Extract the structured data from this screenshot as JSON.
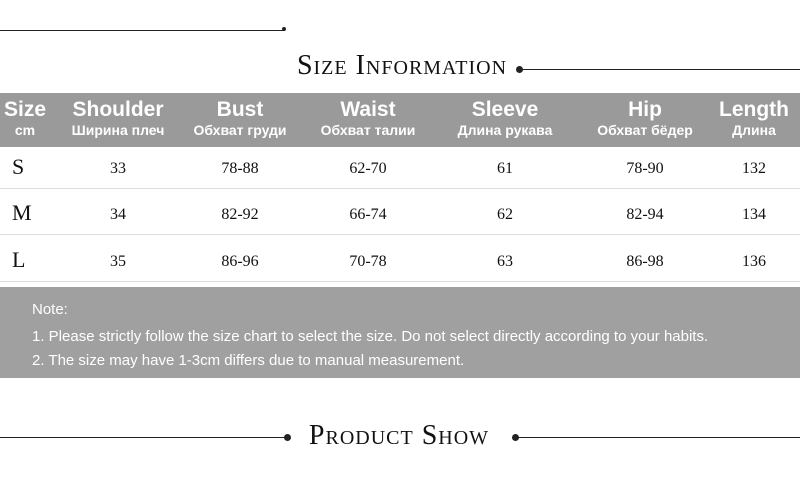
{
  "header": {
    "title": "Size Information"
  },
  "table": {
    "columns": [
      {
        "name": "Size",
        "sub": "cm"
      },
      {
        "name": "Shoulder",
        "sub": "Ширина плеч"
      },
      {
        "name": "Bust",
        "sub": "Обхват груди"
      },
      {
        "name": "Waist",
        "sub": "Обхват талии"
      },
      {
        "name": "Sleeve",
        "sub": "Длина рукава"
      },
      {
        "name": "Hip",
        "sub": "Обхват бёдер"
      },
      {
        "name": "Length",
        "sub": "Длина"
      }
    ],
    "rows": [
      [
        "S",
        "33",
        "78-88",
        "62-70",
        "61",
        "78-90",
        "132"
      ],
      [
        "M",
        "34",
        "82-92",
        "66-74",
        "62",
        "82-94",
        "134"
      ],
      [
        "L",
        "35",
        "86-96",
        "70-78",
        "63",
        "86-98",
        "136"
      ]
    ]
  },
  "note": {
    "title": "Note:",
    "lines": [
      "1. Please strictly follow the size chart to select the size. Do not select directly according to your habits.",
      "2. The size may have 1-3cm differs due to manual measurement."
    ]
  },
  "footer": {
    "title": "Product Show"
  }
}
